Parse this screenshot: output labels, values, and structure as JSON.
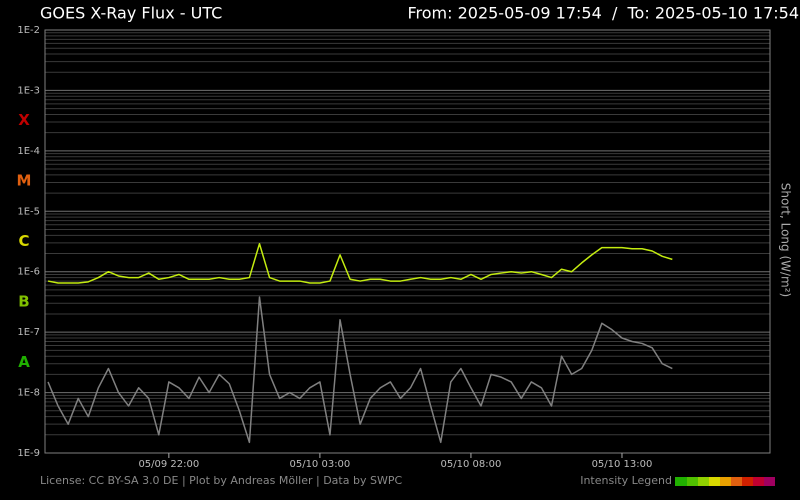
{
  "chart_data": {
    "type": "line",
    "title": "GOES X-Ray Flux - UTC",
    "subtitle": "From: 2025-05-09 17:54  /  To: 2025-05-10 17:54",
    "y_label": "Short, Long (W/m²)",
    "footer": "License: CC BY-SA 3.0 DE | Plot by Andreas Möller | Data by SWPC",
    "legend_label": "Intensity Legend",
    "log_y": true,
    "minor_grid": true,
    "ylim": [
      1e-09,
      0.01
    ],
    "yticks": [
      {
        "value": 0.01,
        "label": "1E-2"
      },
      {
        "value": 0.001,
        "label": "1E-3"
      },
      {
        "value": 0.0001,
        "label": "1E-4"
      },
      {
        "value": 1e-05,
        "label": "1E-5"
      },
      {
        "value": 1e-06,
        "label": "1E-6"
      },
      {
        "value": 1e-07,
        "label": "1E-7"
      },
      {
        "value": 1e-08,
        "label": "1E-8"
      },
      {
        "value": 1e-09,
        "label": "1E-9"
      }
    ],
    "xlim": [
      "2025-05-09 17:54",
      "2025-05-10 17:54"
    ],
    "xticks": [
      {
        "value": "2025-05-09 22:00",
        "label": "05/09 22:00"
      },
      {
        "value": "2025-05-10 03:00",
        "label": "05/10 03:00"
      },
      {
        "value": "2025-05-10 08:00",
        "label": "05/10 08:00"
      },
      {
        "value": "2025-05-10 13:00",
        "label": "05/10 13:00"
      }
    ],
    "flare_classes": [
      {
        "label": "X",
        "value": 0.0001,
        "color": "#c00000"
      },
      {
        "label": "M",
        "value": 1e-05,
        "color": "#e06010"
      },
      {
        "label": "C",
        "value": 1e-06,
        "color": "#d8d800"
      },
      {
        "label": "B",
        "value": 1e-07,
        "color": "#80c000"
      },
      {
        "label": "A",
        "value": 1e-08,
        "color": "#20b000"
      }
    ],
    "x": [
      "2025-05-09 18:00",
      "2025-05-09 18:20",
      "2025-05-09 18:40",
      "2025-05-09 19:00",
      "2025-05-09 19:20",
      "2025-05-09 19:40",
      "2025-05-09 20:00",
      "2025-05-09 20:20",
      "2025-05-09 20:40",
      "2025-05-09 21:00",
      "2025-05-09 21:20",
      "2025-05-09 21:40",
      "2025-05-09 22:00",
      "2025-05-09 22:20",
      "2025-05-09 22:40",
      "2025-05-09 23:00",
      "2025-05-09 23:20",
      "2025-05-09 23:40",
      "2025-05-10 00:00",
      "2025-05-10 00:20",
      "2025-05-10 00:40",
      "2025-05-10 01:00",
      "2025-05-10 01:20",
      "2025-05-10 01:40",
      "2025-05-10 02:00",
      "2025-05-10 02:20",
      "2025-05-10 02:40",
      "2025-05-10 03:00",
      "2025-05-10 03:20",
      "2025-05-10 03:40",
      "2025-05-10 04:00",
      "2025-05-10 04:20",
      "2025-05-10 04:40",
      "2025-05-10 05:00",
      "2025-05-10 05:20",
      "2025-05-10 05:40",
      "2025-05-10 06:00",
      "2025-05-10 06:20",
      "2025-05-10 06:40",
      "2025-05-10 07:00",
      "2025-05-10 07:20",
      "2025-05-10 07:40",
      "2025-05-10 08:00",
      "2025-05-10 08:20",
      "2025-05-10 08:40",
      "2025-05-10 09:00",
      "2025-05-10 09:20",
      "2025-05-10 09:40",
      "2025-05-10 10:00",
      "2025-05-10 10:20",
      "2025-05-10 10:40",
      "2025-05-10 11:00",
      "2025-05-10 11:20",
      "2025-05-10 11:40",
      "2025-05-10 12:00",
      "2025-05-10 12:20",
      "2025-05-10 12:40",
      "2025-05-10 13:00",
      "2025-05-10 13:20",
      "2025-05-10 13:40",
      "2025-05-10 14:00",
      "2025-05-10 14:20",
      "2025-05-10 14:40"
    ],
    "series": [
      {
        "color": "#c4ec10",
        "values": [
          7e-07,
          6.5e-07,
          6.5e-07,
          6.5e-07,
          6.8e-07,
          8e-07,
          1e-06,
          8.5e-07,
          8e-07,
          8e-07,
          9.5e-07,
          7.5e-07,
          8e-07,
          9e-07,
          7.5e-07,
          7.5e-07,
          7.5e-07,
          8e-07,
          7.5e-07,
          7.5e-07,
          8e-07,
          2.9e-06,
          8e-07,
          7e-07,
          7e-07,
          7e-07,
          6.5e-07,
          6.5e-07,
          7e-07,
          1.9e-06,
          7.5e-07,
          7e-07,
          7.5e-07,
          7.5e-07,
          7e-07,
          7e-07,
          7.5e-07,
          8e-07,
          7.5e-07,
          7.5e-07,
          8e-07,
          7.5e-07,
          9e-07,
          7.5e-07,
          9e-07,
          9.5e-07,
          1e-06,
          9.5e-07,
          1e-06,
          9e-07,
          8e-07,
          1.1e-06,
          1e-06,
          1.4e-06,
          1.9e-06,
          2.5e-06,
          2.5e-06,
          2.5e-06,
          2.4e-06,
          2.4e-06,
          2.2e-06,
          1.8e-06,
          1.6e-06
        ]
      },
      {
        "color": "#808080",
        "values": [
          1.5e-08,
          6e-09,
          3e-09,
          8e-09,
          4e-09,
          1.2e-08,
          2.5e-08,
          1e-08,
          6e-09,
          1.2e-08,
          8e-09,
          2e-09,
          1.5e-08,
          1.2e-08,
          8e-09,
          1.8e-08,
          1e-08,
          2e-08,
          1.4e-08,
          5e-09,
          1.5e-09,
          3.8e-07,
          2e-08,
          8e-09,
          1e-08,
          8e-09,
          1.2e-08,
          1.5e-08,
          2e-09,
          1.6e-07,
          2e-08,
          3e-09,
          8e-09,
          1.2e-08,
          1.5e-08,
          8e-09,
          1.2e-08,
          2.5e-08,
          6e-09,
          1.5e-09,
          1.5e-08,
          2.5e-08,
          1.2e-08,
          6e-09,
          2e-08,
          1.8e-08,
          1.5e-08,
          8e-09,
          1.5e-08,
          1.2e-08,
          6e-09,
          4e-08,
          2e-08,
          2.5e-08,
          5e-08,
          1.4e-07,
          1.1e-07,
          8e-08,
          7e-08,
          6.5e-08,
          5.5e-08,
          3e-08,
          2.5e-08
        ]
      }
    ]
  }
}
